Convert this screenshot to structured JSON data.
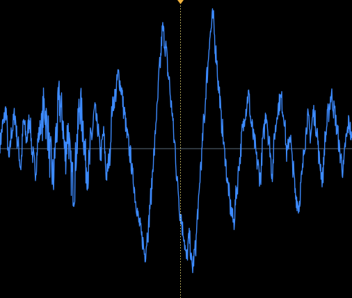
{
  "colors": {
    "background": "#000000",
    "waveform": "#3d8bff",
    "baseline": "#5a6a7a",
    "cursor": "#e8d870",
    "cursor_marker": "#f2b33d"
  },
  "icons": {
    "cursor_marker": "downward-triangle"
  },
  "waveform": {
    "y_range": [
      -1,
      1
    ],
    "samples": [
      0.05,
      0.2,
      0.32,
      -0.1,
      0.15,
      0.28,
      0.05,
      -0.15,
      0.22,
      0.08,
      0.25,
      -0.05,
      -0.18,
      0.1,
      0.22,
      0.35,
      0.18,
      -0.08,
      -0.25,
      0.12,
      0.4,
      0.28,
      -0.05,
      0.15,
      -0.2,
      -0.32,
      0.05,
      0.38,
      0.2,
      -0.12,
      -0.18,
      0.1,
      0.32,
      0.18,
      -0.05,
      0.12,
      -0.22,
      -0.08,
      0.35,
      0.45,
      0.62,
      0.5,
      0.3,
      0.1,
      -0.05,
      -0.25,
      -0.45,
      -0.62,
      -0.75,
      -0.88,
      -0.7,
      -0.4,
      -0.05,
      0.3,
      0.68,
      1.0,
      0.85,
      0.6,
      0.35,
      0.05,
      -0.3,
      -0.55,
      -0.7,
      -0.92,
      -0.75,
      -1.0,
      -0.85,
      -0.5,
      -0.1,
      0.25,
      0.62,
      0.95,
      1.1,
      0.8,
      0.5,
      0.2,
      -0.05,
      -0.3,
      -0.5,
      -0.62,
      -0.35,
      -0.1,
      0.15,
      0.32,
      0.45,
      0.2,
      0.05,
      -0.12,
      -0.25,
      0.1,
      0.3,
      0.05,
      -0.2,
      0.15,
      0.35,
      0.42,
      0.28,
      -0.05,
      0.12,
      -0.15,
      -0.4,
      -0.48,
      -0.25,
      0.05,
      0.25,
      0.12,
      0.3,
      0.18,
      -0.1,
      -0.25,
      0.1,
      0.3,
      0.45,
      0.32,
      0.15,
      -0.05,
      -0.18,
      0.08,
      0.22,
      0.05
    ]
  }
}
